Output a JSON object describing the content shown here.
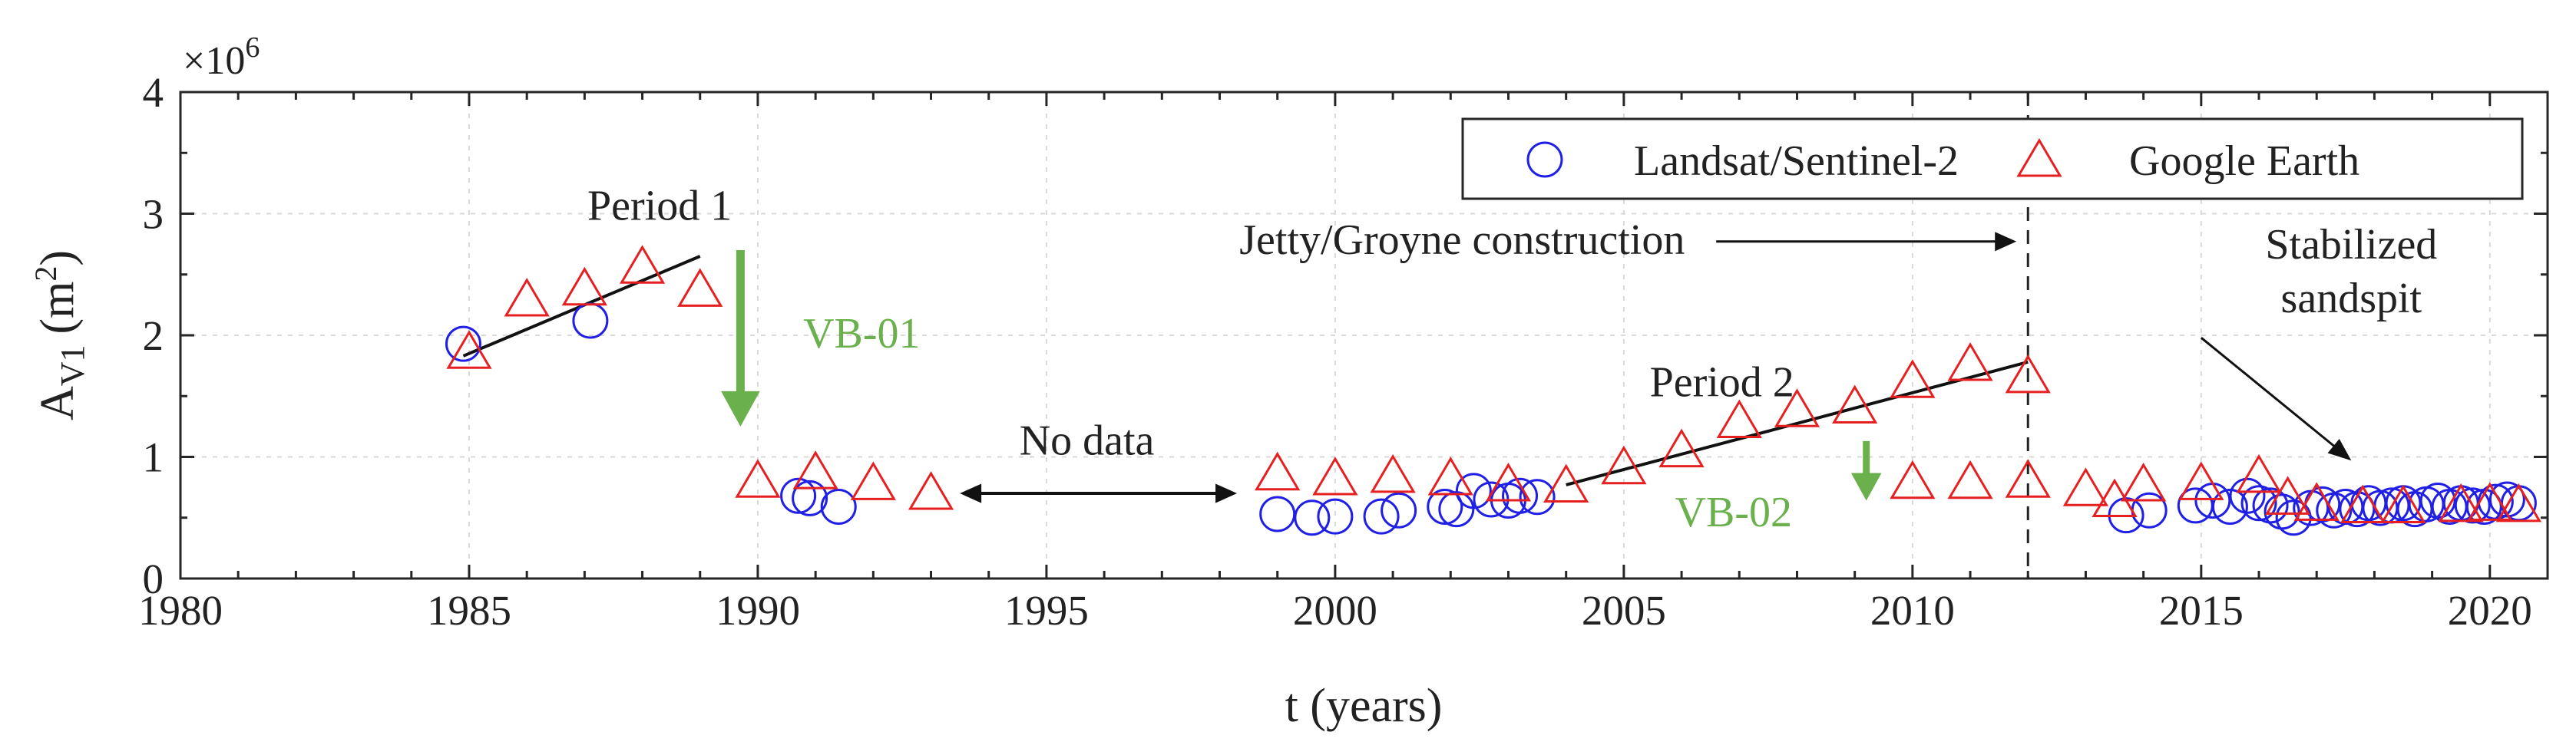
{
  "chart_data": {
    "type": "scatter",
    "title": "",
    "xlabel": "t (years)",
    "ylabel_main": "A",
    "ylabel_sub": "V1",
    "ylabel_unit_open": "(m",
    "ylabel_unit_sup": "2",
    "ylabel_unit_close": ")",
    "y_exponent_base": "×10",
    "y_exponent_power": "6",
    "xlim": [
      1980,
      2021
    ],
    "ylim": [
      0,
      4000000
    ],
    "x_ticks": [
      1980,
      1985,
      1990,
      1995,
      2000,
      2005,
      2010,
      2015,
      2020
    ],
    "x_tick_labels": [
      "1980",
      "1985",
      "1990",
      "1995",
      "2000",
      "2005",
      "2010",
      "2015",
      "2020"
    ],
    "y_ticks": [
      0,
      1000000,
      2000000,
      3000000,
      4000000
    ],
    "y_tick_labels": [
      "0",
      "1",
      "2",
      "3",
      "4"
    ],
    "grid": true,
    "legend_position": "top-right",
    "series": [
      {
        "name": "Landsat/Sentinel-2",
        "marker": "circle",
        "color": "#1f1fe6",
        "points": [
          [
            1984.9,
            1930000
          ],
          [
            1987.1,
            2120000
          ],
          [
            1990.7,
            680000
          ],
          [
            1990.9,
            660000
          ],
          [
            1991.4,
            590000
          ],
          [
            1999.0,
            530000
          ],
          [
            1999.6,
            500000
          ],
          [
            2000.0,
            510000
          ],
          [
            2000.8,
            510000
          ],
          [
            2001.1,
            560000
          ],
          [
            2001.9,
            590000
          ],
          [
            2002.1,
            570000
          ],
          [
            2002.4,
            720000
          ],
          [
            2002.7,
            650000
          ],
          [
            2003.0,
            640000
          ],
          [
            2003.2,
            680000
          ],
          [
            2003.5,
            670000
          ],
          [
            2013.7,
            520000
          ],
          [
            2014.1,
            560000
          ],
          [
            2014.9,
            600000
          ],
          [
            2015.2,
            640000
          ],
          [
            2015.5,
            590000
          ],
          [
            2015.8,
            680000
          ],
          [
            2016.0,
            620000
          ],
          [
            2016.2,
            600000
          ],
          [
            2016.4,
            550000
          ],
          [
            2016.6,
            500000
          ],
          [
            2016.9,
            580000
          ],
          [
            2017.1,
            610000
          ],
          [
            2017.3,
            560000
          ],
          [
            2017.5,
            590000
          ],
          [
            2017.7,
            570000
          ],
          [
            2017.9,
            620000
          ],
          [
            2018.1,
            580000
          ],
          [
            2018.3,
            600000
          ],
          [
            2018.5,
            620000
          ],
          [
            2018.7,
            570000
          ],
          [
            2018.9,
            610000
          ],
          [
            2019.1,
            640000
          ],
          [
            2019.3,
            590000
          ],
          [
            2019.5,
            620000
          ],
          [
            2019.7,
            600000
          ],
          [
            2019.9,
            590000
          ],
          [
            2020.1,
            630000
          ],
          [
            2020.3,
            650000
          ],
          [
            2020.5,
            620000
          ]
        ]
      },
      {
        "name": "Google Earth",
        "marker": "triangle",
        "color": "#e62020",
        "points": [
          [
            1985.0,
            1860000
          ],
          [
            1986.0,
            2290000
          ],
          [
            1987.0,
            2380000
          ],
          [
            1988.0,
            2560000
          ],
          [
            1989.0,
            2370000
          ],
          [
            1990.0,
            800000
          ],
          [
            1991.0,
            870000
          ],
          [
            1992.0,
            780000
          ],
          [
            1993.0,
            700000
          ],
          [
            1999.0,
            860000
          ],
          [
            2000.0,
            820000
          ],
          [
            2001.0,
            840000
          ],
          [
            2002.0,
            820000
          ],
          [
            2003.0,
            770000
          ],
          [
            2004.0,
            760000
          ],
          [
            2005.0,
            910000
          ],
          [
            2006.0,
            1050000
          ],
          [
            2007.0,
            1290000
          ],
          [
            2008.0,
            1380000
          ],
          [
            2009.0,
            1410000
          ],
          [
            2010.0,
            1620000
          ],
          [
            2011.0,
            1760000
          ],
          [
            2012.0,
            1660000
          ],
          [
            2010.0,
            790000
          ],
          [
            2011.0,
            790000
          ],
          [
            2012.0,
            800000
          ],
          [
            2013.0,
            730000
          ],
          [
            2013.5,
            640000
          ],
          [
            2014.0,
            770000
          ],
          [
            2015.0,
            780000
          ],
          [
            2016.0,
            840000
          ],
          [
            2016.5,
            660000
          ],
          [
            2017.0,
            610000
          ],
          [
            2017.8,
            590000
          ],
          [
            2018.5,
            590000
          ],
          [
            2019.5,
            600000
          ],
          [
            2020.0,
            610000
          ],
          [
            2020.5,
            600000
          ]
        ]
      }
    ],
    "trend_lines": [
      {
        "name": "period-1-trend",
        "x": [
          1984.9,
          1989.0
        ],
        "y": [
          1830000,
          2650000
        ]
      },
      {
        "name": "period-2-trend",
        "x": [
          2004.0,
          2012.0
        ],
        "y": [
          770000,
          1780000
        ]
      }
    ],
    "vertical_line": {
      "x": 2012.0,
      "style": "dashed"
    },
    "annotations": {
      "period1": "Period 1",
      "period2": "Period 2",
      "vb01": "VB-01",
      "vb02": "VB-02",
      "no_data": "No data",
      "jetty": "Jetty/Groyne construction",
      "stabilized_line1": "Stabilized",
      "stabilized_line2": "sandspit"
    },
    "annotation_anchors": {
      "period1_label": [
        1988.3,
        2950000
      ],
      "period2_label": [
        2006.7,
        1500000
      ],
      "vb01_arrow_x": 1989.7,
      "vb01_arrow_y": [
        2700000,
        1250000
      ],
      "vb01_label": [
        1991.8,
        1900000
      ],
      "vb02_arrow_x": 2009.2,
      "vb02_arrow_y": [
        1130000,
        640000
      ],
      "vb02_label": [
        2006.9,
        430000
      ],
      "no_data_x": [
        1993.5,
        1998.3
      ],
      "no_data_y": 700000,
      "no_data_label": [
        1995.7,
        1020000
      ],
      "jetty_label": [
        2002.2,
        2670000
      ],
      "jetty_arrow_x": [
        2006.6,
        2011.8
      ],
      "jetty_arrow_y": 2670000,
      "stabilized_label": [
        2017.6,
        2630000,
        2190000
      ],
      "stabilized_arrow": [
        2015.0,
        1980000,
        2017.6,
        970000
      ]
    }
  }
}
